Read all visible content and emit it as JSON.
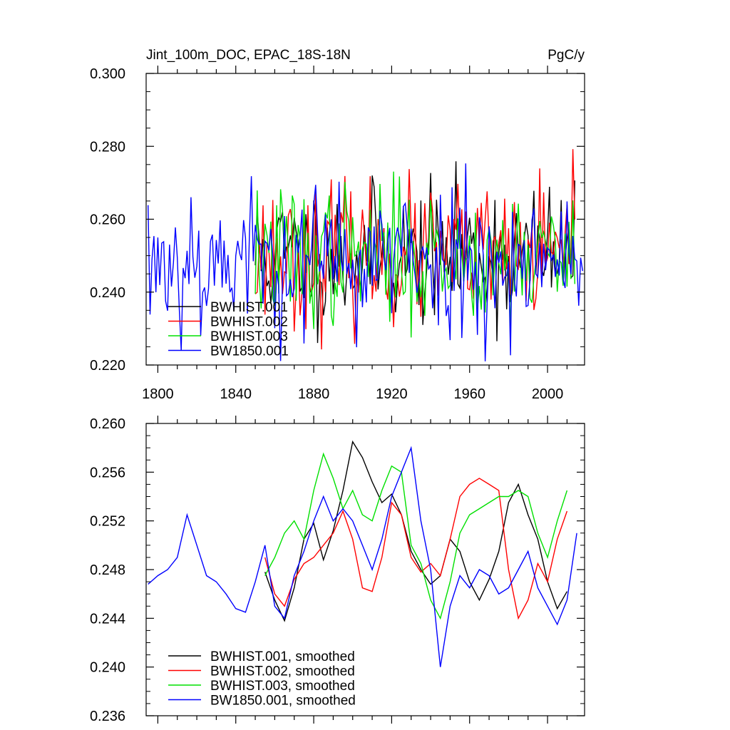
{
  "chart_data": [
    {
      "type": "line",
      "title": "Jint_100m_DOC, EPAC_18S-18N",
      "units": "PgC/y",
      "xlim": [
        1794,
        2019
      ],
      "ylim": [
        0.22,
        0.3
      ],
      "xticks": [
        1800,
        1840,
        1880,
        1920,
        1960,
        2000
      ],
      "xtick_labels": [
        "1800",
        "1840",
        "1880",
        "1920",
        "1960",
        "2000"
      ],
      "yticks": [
        0.22,
        0.24,
        0.26,
        0.28,
        0.3
      ],
      "ytick_labels": [
        "0.220",
        "0.240",
        "0.260",
        "0.280",
        "0.300"
      ],
      "legend_location": "lower-left",
      "grid": false,
      "series": [
        {
          "name": "BWHIST.001",
          "color": "#000000",
          "x_start": 1850,
          "x_end": 2014,
          "mean": 0.25,
          "spread": 0.0095,
          "seed": 11
        },
        {
          "name": "BWHIST.002",
          "color": "#ff0000",
          "x_start": 1850,
          "x_end": 2014,
          "mean": 0.25,
          "spread": 0.0095,
          "seed": 23
        },
        {
          "name": "BWHIST.003",
          "color": "#00e000",
          "x_start": 1850,
          "x_end": 2014,
          "mean": 0.25,
          "spread": 0.0095,
          "seed": 37
        },
        {
          "name": "BW1850.001",
          "color": "#0000ff",
          "x_start": 1795,
          "x_end": 2018,
          "mean": 0.249,
          "spread": 0.0105,
          "seed": 53
        }
      ]
    },
    {
      "type": "line",
      "title": "",
      "xlim": [
        1794,
        2019
      ],
      "ylim": [
        0.236,
        0.26
      ],
      "xticks": [
        1800,
        1840,
        1880,
        1920,
        1960,
        2000
      ],
      "yticks": [
        0.236,
        0.24,
        0.244,
        0.248,
        0.252,
        0.256,
        0.26
      ],
      "ytick_labels": [
        "0.236",
        "0.240",
        "0.244",
        "0.248",
        "0.252",
        "0.256",
        "0.260"
      ],
      "legend_location": "lower-left",
      "grid": false,
      "series": [
        {
          "name": "BWHIST.001, smoothed",
          "color": "#000000",
          "x": [
            1855,
            1860,
            1865,
            1870,
            1875,
            1880,
            1885,
            1890,
            1895,
            1900,
            1905,
            1910,
            1915,
            1920,
            1925,
            1930,
            1935,
            1940,
            1945,
            1950,
            1955,
            1960,
            1965,
            1970,
            1975,
            1980,
            1985,
            1990,
            1995,
            2000,
            2005,
            2010
          ],
          "y": [
            0.2478,
            0.2455,
            0.2438,
            0.2465,
            0.2505,
            0.2518,
            0.2488,
            0.2512,
            0.2545,
            0.2585,
            0.2572,
            0.2552,
            0.2535,
            0.2542,
            0.2525,
            0.2495,
            0.248,
            0.2468,
            0.2475,
            0.2505,
            0.2495,
            0.247,
            0.2455,
            0.2472,
            0.2495,
            0.2535,
            0.255,
            0.2525,
            0.2505,
            0.247,
            0.2448,
            0.2462
          ]
        },
        {
          "name": "BWHIST.002, smoothed",
          "color": "#ff0000",
          "x": [
            1855,
            1860,
            1865,
            1870,
            1875,
            1880,
            1885,
            1890,
            1895,
            1900,
            1905,
            1910,
            1915,
            1920,
            1925,
            1930,
            1935,
            1940,
            1945,
            1950,
            1955,
            1960,
            1965,
            1970,
            1975,
            1980,
            1985,
            1990,
            1995,
            2000,
            2005,
            2010
          ],
          "y": [
            0.249,
            0.246,
            0.245,
            0.2472,
            0.2485,
            0.249,
            0.25,
            0.251,
            0.2528,
            0.2505,
            0.2465,
            0.2462,
            0.249,
            0.2535,
            0.2525,
            0.249,
            0.2478,
            0.2485,
            0.2475,
            0.2505,
            0.254,
            0.255,
            0.2555,
            0.255,
            0.2545,
            0.248,
            0.244,
            0.2455,
            0.2485,
            0.247,
            0.2505,
            0.2528
          ]
        },
        {
          "name": "BWHIST.003, smoothed",
          "color": "#00e000",
          "x": [
            1855,
            1860,
            1865,
            1870,
            1875,
            1880,
            1885,
            1890,
            1895,
            1900,
            1905,
            1910,
            1915,
            1920,
            1925,
            1930,
            1935,
            1940,
            1945,
            1950,
            1955,
            1960,
            1965,
            1970,
            1975,
            1980,
            1985,
            1990,
            1995,
            2000,
            2005,
            2010
          ],
          "y": [
            0.2475,
            0.249,
            0.251,
            0.252,
            0.2505,
            0.2545,
            0.2575,
            0.2555,
            0.253,
            0.2545,
            0.2525,
            0.252,
            0.2545,
            0.2565,
            0.256,
            0.25,
            0.2485,
            0.2455,
            0.244,
            0.247,
            0.251,
            0.2525,
            0.253,
            0.2535,
            0.254,
            0.254,
            0.2545,
            0.254,
            0.251,
            0.249,
            0.252,
            0.2545
          ]
        },
        {
          "name": "BW1850.001, smoothed",
          "color": "#0000ff",
          "x": [
            1795,
            1800,
            1805,
            1810,
            1815,
            1820,
            1825,
            1830,
            1835,
            1840,
            1845,
            1850,
            1855,
            1860,
            1865,
            1870,
            1875,
            1880,
            1885,
            1890,
            1895,
            1900,
            1905,
            1910,
            1915,
            1920,
            1925,
            1930,
            1935,
            1940,
            1945,
            1950,
            1955,
            1960,
            1965,
            1970,
            1975,
            1980,
            1985,
            1990,
            1995,
            2000,
            2005,
            2010,
            2015
          ],
          "y": [
            0.2468,
            0.2475,
            0.248,
            0.249,
            0.2525,
            0.25,
            0.2475,
            0.247,
            0.246,
            0.2448,
            0.2445,
            0.247,
            0.25,
            0.245,
            0.244,
            0.2475,
            0.2495,
            0.252,
            0.254,
            0.252,
            0.253,
            0.252,
            0.25,
            0.248,
            0.2505,
            0.254,
            0.256,
            0.258,
            0.252,
            0.248,
            0.24,
            0.245,
            0.2475,
            0.2465,
            0.248,
            0.2475,
            0.246,
            0.2465,
            0.248,
            0.2495,
            0.2465,
            0.245,
            0.2435,
            0.2455,
            0.251
          ]
        }
      ]
    }
  ]
}
